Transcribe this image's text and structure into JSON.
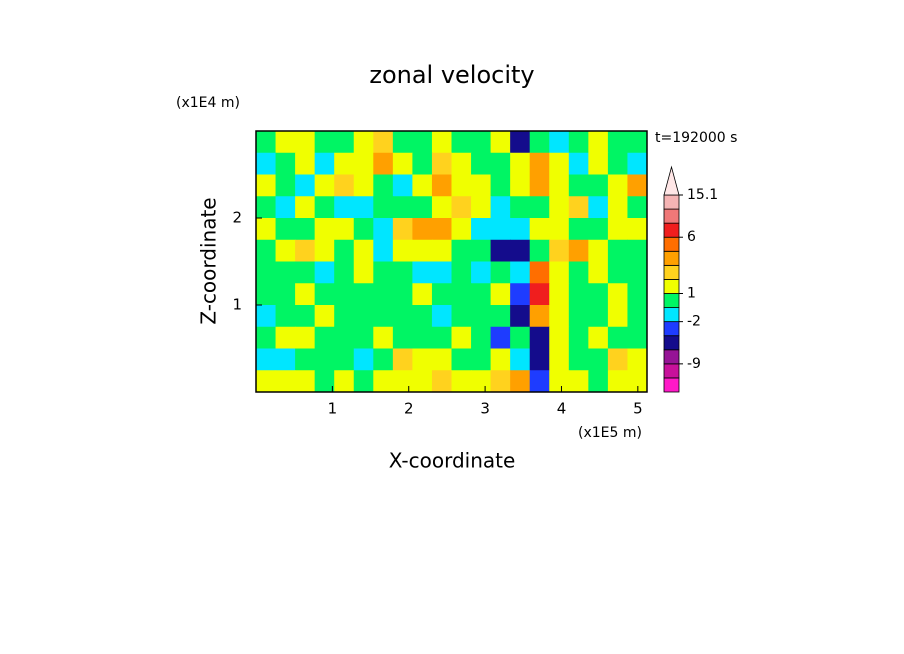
{
  "chart_data": {
    "type": "contour",
    "title": "zonal velocity",
    "x_label": "X-coordinate",
    "y_label": "Z-coordinate",
    "x_unit": "(x1E5 m)",
    "y_unit": "(x1E4 m)",
    "annotation": "t=192000 s",
    "xlim": [
      0,
      5.12
    ],
    "ylim": [
      0,
      3
    ],
    "xticks": [
      1,
      2,
      3,
      4,
      5
    ],
    "yticks": [
      1,
      2
    ],
    "colorbar": {
      "levels": [
        -15,
        -12,
        -9,
        -6,
        -3,
        -2,
        0,
        1,
        2,
        3,
        4,
        6,
        9,
        12,
        15.1
      ],
      "colors": [
        "#ff19c8",
        "#c8119b",
        "#961496",
        "#140c8c",
        "#1e3cff",
        "#00e6ff",
        "#00f564",
        "#f0ff00",
        "#ffd21e",
        "#ffa000",
        "#ff6e00",
        "#f01e1e",
        "#f07878",
        "#f5b4b4"
      ],
      "over_color": "#ffe6e6",
      "ticks": [
        -9,
        -2,
        1,
        6,
        15.1
      ]
    },
    "z": [
      [
        0.5,
        1.5,
        1.5,
        0.5,
        0.5,
        1.5,
        2.5,
        0.5,
        0.5,
        1.5,
        0.5,
        0.5,
        1.5,
        -4.5,
        0.5,
        -1,
        0.5,
        1.5,
        0.5,
        0.5
      ],
      [
        -1,
        0.5,
        1.5,
        -1,
        1.5,
        1.5,
        3.5,
        1.5,
        0.5,
        2.5,
        1.5,
        0.5,
        0.5,
        1.5,
        3.5,
        1.5,
        -1,
        1.5,
        0.5,
        -1
      ],
      [
        1.5,
        0.5,
        -1,
        1.5,
        2.5,
        1.5,
        0.5,
        -1,
        1.5,
        3.5,
        1.5,
        1.5,
        0.5,
        1.5,
        3.5,
        1.5,
        0.5,
        0.5,
        1.5,
        3.5
      ],
      [
        0.5,
        -1,
        1.5,
        0.5,
        -1,
        -1,
        0.5,
        0.5,
        0.5,
        1.5,
        2.5,
        1.5,
        -1,
        0.5,
        0.5,
        1.5,
        2.5,
        -1,
        1.5,
        0.5
      ],
      [
        1.5,
        0.5,
        0.5,
        1.5,
        1.5,
        0.5,
        -1,
        2.5,
        3.5,
        3.5,
        1.5,
        -1,
        -1,
        -1,
        1.5,
        1.5,
        0.5,
        0.5,
        1.5,
        1.5
      ],
      [
        0.5,
        1.5,
        2.5,
        1.5,
        0.5,
        1.5,
        -1,
        1.5,
        1.5,
        1.5,
        0.5,
        0.5,
        -4.5,
        -4.5,
        0.5,
        2.5,
        3.5,
        1.5,
        0.5,
        0.5
      ],
      [
        0.5,
        0.5,
        0.5,
        -1,
        0.5,
        1.5,
        0.5,
        0.5,
        -1,
        -1,
        0.5,
        -1,
        0.5,
        -1,
        5,
        1.5,
        0.5,
        1.5,
        0.5,
        0.5
      ],
      [
        0.5,
        0.5,
        1.5,
        0.5,
        0.5,
        0.5,
        0.5,
        0.5,
        1.5,
        0.5,
        0.5,
        0.5,
        1.5,
        -2.5,
        7,
        1.5,
        0.5,
        0.5,
        1.5,
        0.5
      ],
      [
        -1,
        0.5,
        0.5,
        1.5,
        0.5,
        0.5,
        0.5,
        0.5,
        0.5,
        -1,
        0.5,
        0.5,
        0.5,
        -4.5,
        3.5,
        1.5,
        0.5,
        0.5,
        1.5,
        0.5
      ],
      [
        0.5,
        1.5,
        1.5,
        0.5,
        0.5,
        0.5,
        1.5,
        0.5,
        0.5,
        0.5,
        1.5,
        0.5,
        -2.5,
        0.5,
        -4.5,
        1.5,
        0.5,
        1.5,
        0.5,
        0.5
      ],
      [
        -1,
        -1,
        0.5,
        0.5,
        0.5,
        -1,
        0.5,
        2.5,
        1.5,
        1.5,
        0.5,
        0.5,
        1.5,
        -1,
        -4.5,
        1.5,
        0.5,
        0.5,
        2.5,
        1.5
      ],
      [
        1.5,
        1.5,
        1.5,
        0.5,
        1.5,
        0.5,
        1.5,
        1.5,
        1.5,
        2.5,
        1.5,
        1.5,
        2.5,
        3.5,
        -2.5,
        1.5,
        1.5,
        0.5,
        1.5,
        1.5
      ]
    ]
  }
}
